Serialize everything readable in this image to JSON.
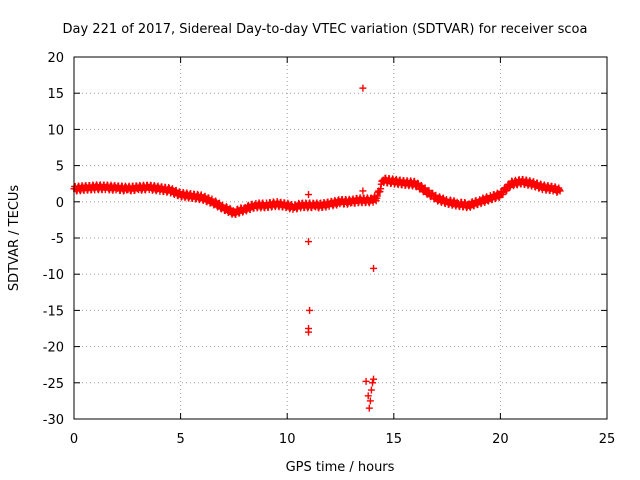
{
  "chart_data": {
    "type": "scatter",
    "title": "Day 221 of 2017, Sidereal Day-to-day VTEC variation (SDTVAR) for receiver scoa",
    "xlabel": "GPS time / hours",
    "ylabel": "SDTVAR / TECUs",
    "xlim": [
      0,
      25
    ],
    "ylim": [
      -30,
      20
    ],
    "xticks": [
      0,
      5,
      10,
      15,
      20,
      25
    ],
    "yticks": [
      -30,
      -25,
      -20,
      -15,
      -10,
      -5,
      0,
      5,
      10,
      15,
      20
    ],
    "grid": true,
    "marker": "+",
    "color": "#ff0000",
    "series": [
      {
        "name": "main",
        "x": [
          0.0,
          0.5,
          1.0,
          1.5,
          2.0,
          2.5,
          3.0,
          3.5,
          4.0,
          4.5,
          5.0,
          5.5,
          6.0,
          6.5,
          7.0,
          7.5,
          8.0,
          8.5,
          9.0,
          9.5,
          10.0,
          10.3,
          10.6,
          11.3,
          11.6,
          12.0,
          12.5,
          13.0,
          13.3,
          14.0,
          14.2,
          14.5,
          15.0,
          15.5,
          16.0,
          16.5,
          17.0,
          17.5,
          18.0,
          18.5,
          19.0,
          19.5,
          20.0,
          20.5,
          21.0,
          21.5,
          22.0,
          22.5,
          22.8
        ],
        "y": [
          1.8,
          1.9,
          2.0,
          2.0,
          1.9,
          1.8,
          1.9,
          2.0,
          1.8,
          1.6,
          1.0,
          0.8,
          0.6,
          0.0,
          -0.8,
          -1.5,
          -1.0,
          -0.5,
          -0.5,
          -0.3,
          -0.5,
          -0.8,
          -0.5,
          -0.5,
          -0.5,
          -0.3,
          0.0,
          0.0,
          0.2,
          0.2,
          0.5,
          3.0,
          2.8,
          2.6,
          2.5,
          1.5,
          0.5,
          0.0,
          -0.3,
          -0.5,
          0.0,
          0.5,
          1.0,
          2.5,
          2.8,
          2.5,
          2.0,
          1.8,
          1.5
        ]
      },
      {
        "name": "outliers",
        "x": [
          11.0,
          11.0,
          11.05,
          11.0,
          11.0,
          13.55,
          13.55,
          13.7,
          13.8,
          13.85,
          13.9,
          13.95,
          14.0,
          14.0,
          14.05,
          14.05,
          14.1
        ],
        "y": [
          1.0,
          -5.5,
          -15.0,
          -17.5,
          -18.0,
          15.7,
          1.5,
          -24.8,
          -26.8,
          -28.5,
          -27.5,
          -26.0,
          -25.0,
          0.3,
          -24.5,
          -9.2,
          0.8
        ]
      }
    ]
  }
}
